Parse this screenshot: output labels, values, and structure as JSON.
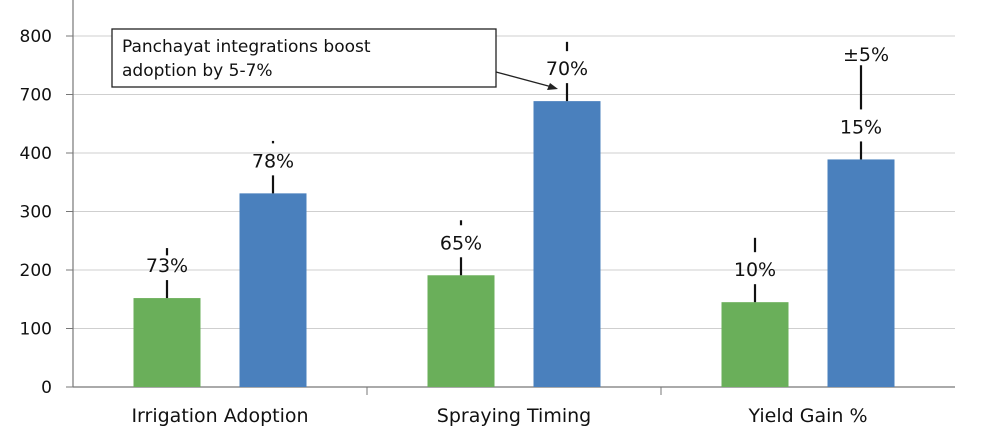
{
  "chart_data": {
    "type": "bar",
    "title": "",
    "xlabel": "",
    "ylabel": "",
    "categories": [
      "Irrigation Adoption",
      "Spraying Timing",
      "Yield Gain %"
    ],
    "y_ticks": [
      "0",
      "100",
      "200",
      "300",
      "400",
      "700",
      "800"
    ],
    "y_tick_values": [
      0,
      100,
      200,
      300,
      400,
      700,
      800
    ],
    "grid": true,
    "legend": "none",
    "series": [
      {
        "color": "#6aaf5a",
        "values": [
          152,
          191,
          145
        ],
        "labels": [
          "73%",
          "65%",
          "10%"
        ],
        "error_top": [
          225,
          285,
          255
        ]
      },
      {
        "color": "#4a80bd",
        "values": [
          331,
          666,
          389
        ],
        "labels": [
          "78%",
          "70%",
          "15%"
        ],
        "error_top": [
          462,
          790,
          750
        ]
      }
    ],
    "annotations": [
      {
        "text_lines": [
          "Panchayat integrations boost",
          "adoption by 5-7%"
        ],
        "target": "Spraying Timing, series 2"
      },
      {
        "text": "±5%",
        "target": "Yield Gain %, series 2"
      }
    ]
  }
}
